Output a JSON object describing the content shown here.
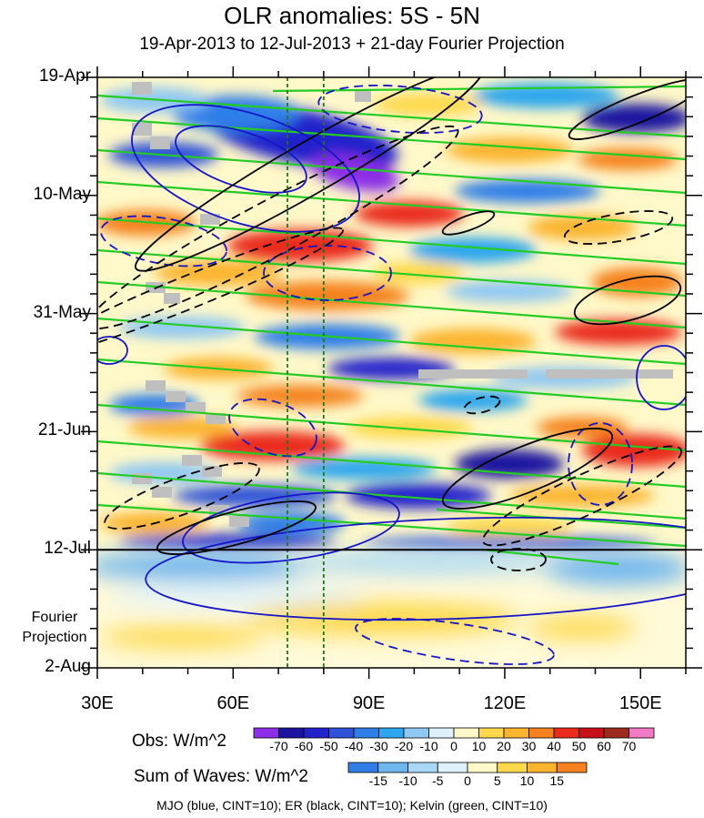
{
  "chart_data": {
    "type": "heatmap",
    "title": "OLR anomalies: 5S - 5N",
    "subtitle": "19-Apr-2013 to 12-Jul-2013 + 21-day Fourier Projection",
    "xlabel": "",
    "ylabel": "",
    "x_range_deg": [
      30,
      160
    ],
    "x_ticks": [
      {
        "value": 30,
        "label": "30E"
      },
      {
        "value": 60,
        "label": "60E"
      },
      {
        "value": 90,
        "label": "90E"
      },
      {
        "value": 120,
        "label": "120E"
      },
      {
        "value": 150,
        "label": "150E"
      }
    ],
    "y_range_days": [
      0,
      105
    ],
    "y_ticks": [
      {
        "day": 0,
        "label": "19-Apr"
      },
      {
        "day": 21,
        "label": "10-May"
      },
      {
        "day": 42,
        "label": "31-May"
      },
      {
        "day": 63,
        "label": "21-Jun"
      },
      {
        "day": 84,
        "label": "12-Jul"
      },
      {
        "day": 105,
        "label": "2-Aug"
      }
    ],
    "observation_end_day": 84,
    "fourier_label": "Fourier\nProjection",
    "fourier_label_lines": [
      "Fourier",
      "Projection"
    ],
    "reference_longitudes": [
      72,
      80
    ],
    "obs_colorbar": {
      "title": "Obs: W/m^2",
      "levels": [
        -70,
        -60,
        -50,
        -40,
        -30,
        -20,
        -10,
        0,
        10,
        20,
        30,
        40,
        50,
        60,
        70
      ],
      "colors": [
        "#8c2ee6",
        "#1a14a0",
        "#2323cc",
        "#2f52d8",
        "#2f7ee8",
        "#2ca6ee",
        "#8fc8f2",
        "#dff2fc",
        "#fff8c8",
        "#fdd84a",
        "#fbb42e",
        "#f5821e",
        "#ea2a1a",
        "#c8101a",
        "#9e2a1e",
        "#f07ac6"
      ]
    },
    "waves_colorbar": {
      "title": "Sum of Waves: W/m^2",
      "levels": [
        -15,
        -10,
        -5,
        0,
        5,
        10,
        15
      ],
      "colors": [
        "#2f7ee8",
        "#6eb6f0",
        "#a9d8f6",
        "#dff2fc",
        "#fff8c8",
        "#fdd84a",
        "#fbb42e",
        "#f5821e"
      ]
    },
    "contour_legend": "MJO (blue, CINT=10); ER (black, CINT=10); Kelvin (green, CINT=10)",
    "series": [
      {
        "name": "MJO",
        "color": "#1414c8",
        "cint": 10
      },
      {
        "name": "ER",
        "color": "#000000",
        "cint": 10
      },
      {
        "name": "Kelvin",
        "color": "#22cc22",
        "cint": 10
      }
    ],
    "anomaly_field": [
      {
        "lon": 70,
        "day": 6,
        "value": -55
      },
      {
        "lon": 82,
        "day": 12,
        "value": -65
      },
      {
        "lon": 50,
        "day": 10,
        "value": -30
      },
      {
        "lon": 150,
        "day": 5,
        "value": -40
      },
      {
        "lon": 85,
        "day": 25,
        "value": 40
      },
      {
        "lon": 55,
        "day": 30,
        "value": 30
      },
      {
        "lon": 75,
        "day": 38,
        "value": 35
      },
      {
        "lon": 140,
        "day": 30,
        "value": 30
      },
      {
        "lon": 100,
        "day": 50,
        "value": -40
      },
      {
        "lon": 60,
        "day": 52,
        "value": 30
      },
      {
        "lon": 70,
        "day": 68,
        "value": 45
      },
      {
        "lon": 150,
        "day": 68,
        "value": 50
      },
      {
        "lon": 130,
        "day": 70,
        "value": -50
      },
      {
        "lon": 95,
        "day": 76,
        "value": -40
      },
      {
        "lon": 40,
        "day": 78,
        "value": -30
      },
      {
        "lon": 120,
        "day": 86,
        "value": -10
      },
      {
        "lon": 90,
        "day": 97,
        "value": 7
      },
      {
        "lon": 45,
        "day": 95,
        "value": 5
      }
    ]
  }
}
